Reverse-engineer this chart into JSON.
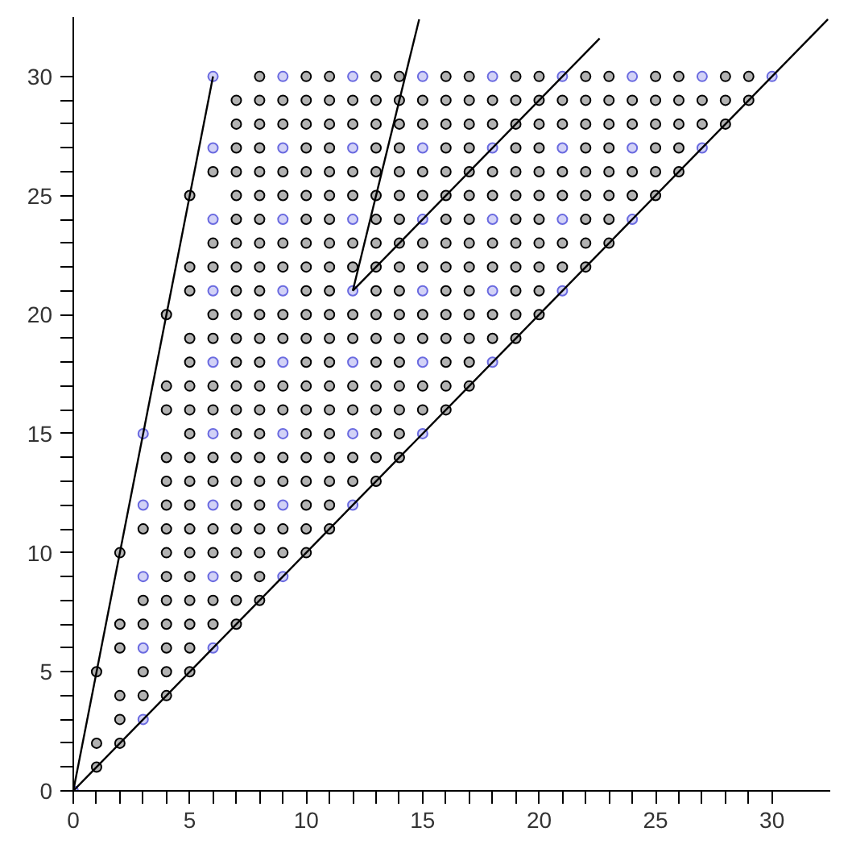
{
  "chart_data": {
    "type": "scatter",
    "marker": "circle",
    "grid": false,
    "xlim": [
      0,
      32.5
    ],
    "ylim": [
      0,
      32.5
    ],
    "xticks": [
      0,
      {
        "value": 1,
        "label": null
      },
      {
        "value": 2,
        "label": null
      },
      {
        "value": 3,
        "label": null
      },
      {
        "value": 4,
        "label": null
      },
      5,
      {
        "value": 6,
        "label": null
      },
      {
        "value": 7,
        "label": null
      },
      {
        "value": 8,
        "label": null
      },
      {
        "value": 9,
        "label": null
      },
      10,
      {
        "value": 11,
        "label": null
      },
      {
        "value": 12,
        "label": null
      },
      {
        "value": 13,
        "label": null
      },
      {
        "value": 14,
        "label": null
      },
      15,
      {
        "value": 16,
        "label": null
      },
      {
        "value": 17,
        "label": null
      },
      {
        "value": 18,
        "label": null
      },
      {
        "value": 19,
        "label": null
      },
      20,
      {
        "value": 21,
        "label": null
      },
      {
        "value": 22,
        "label": null
      },
      {
        "value": 23,
        "label": null
      },
      {
        "value": 24,
        "label": null
      },
      25,
      {
        "value": 26,
        "label": null
      },
      {
        "value": 27,
        "label": null
      },
      {
        "value": 28,
        "label": null
      },
      {
        "value": 29,
        "label": null
      },
      30
    ],
    "yticks": [
      0,
      {
        "value": 1,
        "label": null
      },
      {
        "value": 2,
        "label": null
      },
      {
        "value": 3,
        "label": null
      },
      {
        "value": 4,
        "label": null
      },
      5,
      {
        "value": 6,
        "label": null
      },
      {
        "value": 7,
        "label": null
      },
      {
        "value": 8,
        "label": null
      },
      {
        "value": 9,
        "label": null
      },
      10,
      {
        "value": 11,
        "label": null
      },
      {
        "value": 12,
        "label": null
      },
      {
        "value": 13,
        "label": null
      },
      {
        "value": 14,
        "label": null
      },
      15,
      {
        "value": 16,
        "label": null
      },
      {
        "value": 17,
        "label": null
      },
      {
        "value": 18,
        "label": null
      },
      {
        "value": 19,
        "label": null
      },
      20,
      {
        "value": 21,
        "label": null
      },
      {
        "value": 22,
        "label": null
      },
      {
        "value": 23,
        "label": null
      },
      {
        "value": 24,
        "label": null
      },
      25,
      {
        "value": 26,
        "label": null
      },
      {
        "value": 27,
        "label": null
      },
      {
        "value": 28,
        "label": null
      },
      {
        "value": 29,
        "label": null
      },
      30
    ],
    "series": [
      {
        "color": "#000000",
        "x": [
          1
        ],
        "values": [
          1
        ]
      },
      {
        "color": "#000000",
        "x": [
          1,
          2
        ],
        "values": [
          2,
          2
        ]
      },
      {
        "color": "#000000",
        "x": [
          2
        ],
        "values": [
          3
        ]
      },
      {
        "color": "#000000",
        "x": [
          2,
          3,
          4
        ],
        "values": [
          4,
          4,
          4
        ]
      },
      {
        "color": "#000000",
        "x": [
          1,
          3,
          4,
          5
        ],
        "values": [
          5,
          5,
          5,
          5
        ]
      },
      {
        "color": "#000000",
        "x": [
          2,
          4,
          5
        ],
        "values": [
          6,
          6,
          6
        ]
      },
      {
        "color": "#000000",
        "x": [
          2,
          3,
          4,
          5,
          6,
          7
        ],
        "values": [
          7,
          7,
          7,
          7,
          7,
          7
        ]
      },
      {
        "color": "#000000",
        "x": [
          3,
          4,
          5,
          6,
          7,
          8
        ],
        "values": [
          8,
          8,
          8,
          8,
          8,
          8
        ]
      },
      {
        "color": "#000000",
        "x": [
          4,
          5,
          7,
          8
        ],
        "values": [
          9,
          9,
          9,
          9
        ]
      },
      {
        "color": "#000000",
        "x": [
          2,
          4,
          5,
          6,
          7,
          8,
          9,
          10
        ],
        "values": [
          10,
          10,
          10,
          10,
          10,
          10,
          10,
          10
        ]
      },
      {
        "color": "#000000",
        "x": [
          3,
          4,
          5,
          6,
          7,
          8,
          9,
          10,
          11
        ],
        "values": [
          11,
          11,
          11,
          11,
          11,
          11,
          11,
          11,
          11
        ]
      },
      {
        "color": "#000000",
        "x": [
          4,
          5,
          7,
          8,
          10,
          11
        ],
        "values": [
          12,
          12,
          12,
          12,
          12,
          12
        ]
      },
      {
        "color": "#000000",
        "x": [
          4,
          5,
          6,
          7,
          8,
          9,
          10,
          11,
          12,
          13
        ],
        "values": [
          13,
          13,
          13,
          13,
          13,
          13,
          13,
          13,
          13,
          13
        ]
      },
      {
        "color": "#000000",
        "x": [
          4,
          5,
          6,
          7,
          8,
          9,
          10,
          11,
          12,
          13,
          14
        ],
        "values": [
          14,
          14,
          14,
          14,
          14,
          14,
          14,
          14,
          14,
          14,
          14
        ]
      },
      {
        "color": "#000000",
        "x": [
          5,
          7,
          8,
          10,
          11,
          13,
          14
        ],
        "values": [
          15,
          15,
          15,
          15,
          15,
          15,
          15
        ]
      },
      {
        "color": "#000000",
        "x": [
          4,
          5,
          6,
          7,
          8,
          9,
          10,
          11,
          12,
          13,
          14,
          15,
          16
        ],
        "values": [
          16,
          16,
          16,
          16,
          16,
          16,
          16,
          16,
          16,
          16,
          16,
          16,
          16
        ]
      },
      {
        "color": "#000000",
        "x": [
          4,
          5,
          6,
          7,
          8,
          9,
          10,
          11,
          12,
          13,
          14,
          15,
          16,
          17
        ],
        "values": [
          17,
          17,
          17,
          17,
          17,
          17,
          17,
          17,
          17,
          17,
          17,
          17,
          17,
          17
        ]
      },
      {
        "color": "#000000",
        "x": [
          5,
          7,
          8,
          10,
          11,
          13,
          14,
          16,
          17
        ],
        "values": [
          18,
          18,
          18,
          18,
          18,
          18,
          18,
          18,
          18
        ]
      },
      {
        "color": "#000000",
        "x": [
          5,
          6,
          7,
          8,
          9,
          10,
          11,
          12,
          13,
          14,
          15,
          16,
          17,
          18,
          19
        ],
        "values": [
          19,
          19,
          19,
          19,
          19,
          19,
          19,
          19,
          19,
          19,
          19,
          19,
          19,
          19,
          19
        ]
      },
      {
        "color": "#000000",
        "x": [
          4,
          6,
          7,
          8,
          9,
          10,
          11,
          12,
          13,
          14,
          15,
          16,
          17,
          18,
          19,
          20
        ],
        "values": [
          20,
          20,
          20,
          20,
          20,
          20,
          20,
          20,
          20,
          20,
          20,
          20,
          20,
          20,
          20,
          20
        ]
      },
      {
        "color": "#000000",
        "x": [
          5,
          7,
          8,
          10,
          11,
          13,
          14,
          16,
          17,
          19,
          20
        ],
        "values": [
          21,
          21,
          21,
          21,
          21,
          21,
          21,
          21,
          21,
          21,
          21
        ]
      },
      {
        "color": "#000000",
        "x": [
          5,
          6,
          7,
          8,
          9,
          10,
          11,
          12,
          13,
          14,
          15,
          16,
          17,
          18,
          19,
          20,
          21,
          22
        ],
        "values": [
          22,
          22,
          22,
          22,
          22,
          22,
          22,
          22,
          22,
          22,
          22,
          22,
          22,
          22,
          22,
          22,
          22,
          22
        ]
      },
      {
        "color": "#000000",
        "x": [
          6,
          7,
          8,
          9,
          10,
          11,
          12,
          13,
          14,
          15,
          16,
          17,
          18,
          19,
          20,
          21,
          22,
          23
        ],
        "values": [
          23,
          23,
          23,
          23,
          23,
          23,
          23,
          23,
          23,
          23,
          23,
          23,
          23,
          23,
          23,
          23,
          23,
          23
        ]
      },
      {
        "color": "#000000",
        "x": [
          7,
          8,
          10,
          11,
          13,
          14,
          16,
          17,
          19,
          20,
          22,
          23
        ],
        "values": [
          24,
          24,
          24,
          24,
          24,
          24,
          24,
          24,
          24,
          24,
          24,
          24
        ]
      },
      {
        "color": "#000000",
        "x": [
          5,
          7,
          8,
          9,
          10,
          11,
          12,
          13,
          14,
          15,
          16,
          17,
          18,
          19,
          20,
          21,
          22,
          23,
          24,
          25
        ],
        "values": [
          25,
          25,
          25,
          25,
          25,
          25,
          25,
          25,
          25,
          25,
          25,
          25,
          25,
          25,
          25,
          25,
          25,
          25,
          25,
          25
        ]
      },
      {
        "color": "#000000",
        "x": [
          6,
          7,
          8,
          9,
          10,
          11,
          12,
          13,
          14,
          15,
          16,
          17,
          18,
          19,
          20,
          21,
          22,
          23,
          24,
          25,
          26
        ],
        "values": [
          26,
          26,
          26,
          26,
          26,
          26,
          26,
          26,
          26,
          26,
          26,
          26,
          26,
          26,
          26,
          26,
          26,
          26,
          26,
          26,
          26
        ]
      },
      {
        "color": "#000000",
        "x": [
          7,
          8,
          10,
          11,
          13,
          14,
          16,
          17,
          19,
          20,
          22,
          23,
          25,
          26
        ],
        "values": [
          27,
          27,
          27,
          27,
          27,
          27,
          27,
          27,
          27,
          27,
          27,
          27,
          27,
          27
        ]
      },
      {
        "color": "#000000",
        "x": [
          7,
          8,
          9,
          10,
          11,
          12,
          13,
          14,
          15,
          16,
          17,
          18,
          19,
          20,
          21,
          22,
          23,
          24,
          25,
          26,
          27,
          28
        ],
        "values": [
          28,
          28,
          28,
          28,
          28,
          28,
          28,
          28,
          28,
          28,
          28,
          28,
          28,
          28,
          28,
          28,
          28,
          28,
          28,
          28,
          28,
          28
        ]
      },
      {
        "color": "#000000",
        "x": [
          7,
          8,
          9,
          10,
          11,
          12,
          13,
          14,
          15,
          16,
          17,
          18,
          19,
          20,
          21,
          22,
          23,
          24,
          25,
          26,
          27,
          28,
          29
        ],
        "values": [
          29,
          29,
          29,
          29,
          29,
          29,
          29,
          29,
          29,
          29,
          29,
          29,
          29,
          29,
          29,
          29,
          29,
          29,
          29,
          29,
          29,
          29,
          29
        ]
      },
      {
        "color": "#000000",
        "x": [
          8,
          10,
          11,
          13,
          14,
          16,
          17,
          19,
          20,
          22,
          23,
          25,
          26,
          28,
          29
        ],
        "values": [
          30,
          30,
          30,
          30,
          30,
          30,
          30,
          30,
          30,
          30,
          30,
          30,
          30,
          30,
          30
        ]
      },
      {
        "color": "#6a6ae0",
        "x": [
          0,
          3,
          3,
          6,
          3,
          6,
          9,
          3,
          6,
          9,
          12,
          3,
          6,
          9,
          12,
          15,
          6,
          9,
          12,
          15,
          18,
          6,
          9,
          12,
          15,
          18,
          21,
          6,
          9,
          12,
          15,
          18,
          21,
          24,
          6,
          9,
          12,
          15,
          18,
          21,
          24,
          27,
          6,
          9,
          12,
          15,
          18,
          21,
          24,
          27,
          30
        ],
        "values": [
          0,
          3,
          6,
          6,
          9,
          9,
          9,
          12,
          12,
          12,
          12,
          15,
          15,
          15,
          15,
          15,
          18,
          18,
          18,
          18,
          18,
          21,
          21,
          21,
          21,
          21,
          21,
          24,
          24,
          24,
          24,
          24,
          24,
          24,
          27,
          27,
          27,
          27,
          27,
          27,
          27,
          27,
          30,
          30,
          30,
          30,
          30,
          30,
          30,
          30,
          30
        ]
      },
      {
        "type": "line",
        "line_style": "solid",
        "marker": "none",
        "color": "#000000",
        "x": [
          0,
          32.4
        ],
        "values": [
          0,
          32.4
        ]
      },
      {
        "type": "line",
        "line_style": "solid",
        "marker": "none",
        "color": "#000000",
        "x": [
          0,
          6
        ],
        "values": [
          0,
          30
        ]
      },
      {
        "type": "line",
        "line_style": "solid",
        "marker": "none",
        "color": "#000000",
        "x": [
          12,
          14.85
        ],
        "values": [
          21,
          32.4
        ]
      },
      {
        "type": "line",
        "line_style": "solid",
        "marker": "none",
        "color": "#000000",
        "x": [
          12,
          22.6
        ],
        "values": [
          21,
          31.6
        ]
      }
    ]
  }
}
